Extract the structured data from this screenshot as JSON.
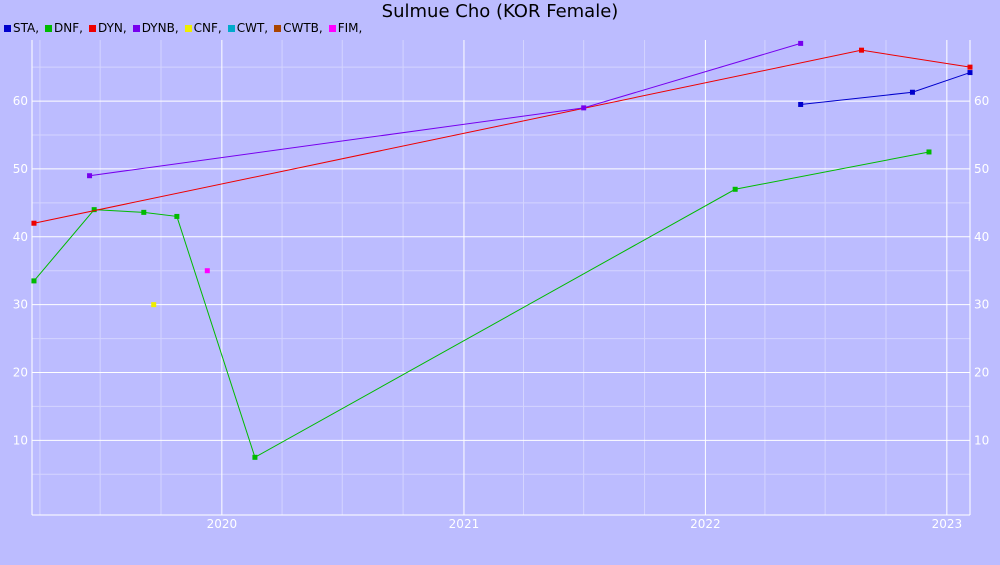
{
  "chart_data": {
    "type": "line",
    "title": "Sulmue Cho (KOR Female)",
    "xlabel": "",
    "ylabel": "",
    "xlim": [
      "2019-03-20",
      "2023-02-05"
    ],
    "ylim": [
      -1,
      69
    ],
    "y_ticks": [
      10,
      20,
      30,
      40,
      50,
      60
    ],
    "x_ticks": [
      {
        "label": "2020",
        "date": "2020-01-01"
      },
      {
        "label": "2021",
        "date": "2021-01-01"
      },
      {
        "label": "2022",
        "date": "2022-01-01"
      },
      {
        "label": "2023",
        "date": "2023-01-01"
      }
    ],
    "grid": true,
    "legend_position": "top-left",
    "series": [
      {
        "name": "STA,",
        "color": "#0000cc",
        "points": [
          {
            "x": "2022-05-25",
            "y": 59.5
          },
          {
            "x": "2022-11-10",
            "y": 61.3
          },
          {
            "x": "2023-02-05",
            "y": 64.2
          }
        ]
      },
      {
        "name": "DNF,",
        "color": "#00bb00",
        "points": [
          {
            "x": "2019-03-23",
            "y": 33.5
          },
          {
            "x": "2019-06-22",
            "y": 44.0
          },
          {
            "x": "2019-09-05",
            "y": 43.6
          },
          {
            "x": "2019-10-25",
            "y": 43.0
          },
          {
            "x": "2020-02-20",
            "y": 7.5
          },
          {
            "x": "2022-02-15",
            "y": 47.0
          },
          {
            "x": "2022-12-05",
            "y": 52.5
          }
        ]
      },
      {
        "name": "DYN,",
        "color": "#ee0000",
        "points": [
          {
            "x": "2019-03-23",
            "y": 42.0
          },
          {
            "x": "2022-08-25",
            "y": 67.5
          },
          {
            "x": "2023-02-05",
            "y": 65.0
          }
        ]
      },
      {
        "name": "DYNB,",
        "color": "#7700ee",
        "points": [
          {
            "x": "2019-06-15",
            "y": 49.0
          },
          {
            "x": "2021-07-01",
            "y": 59.0
          },
          {
            "x": "2022-05-25",
            "y": 68.5
          }
        ]
      },
      {
        "name": "CNF,",
        "color": "#eeee00",
        "points": [
          {
            "x": "2019-09-20",
            "y": 30.0
          }
        ]
      },
      {
        "name": "CWT,",
        "color": "#00aacc",
        "points": []
      },
      {
        "name": "CWTB,",
        "color": "#aa4400",
        "points": []
      },
      {
        "name": "FIM,",
        "color": "#ff00ff",
        "points": [
          {
            "x": "2019-12-10",
            "y": 35.0
          }
        ]
      }
    ]
  }
}
